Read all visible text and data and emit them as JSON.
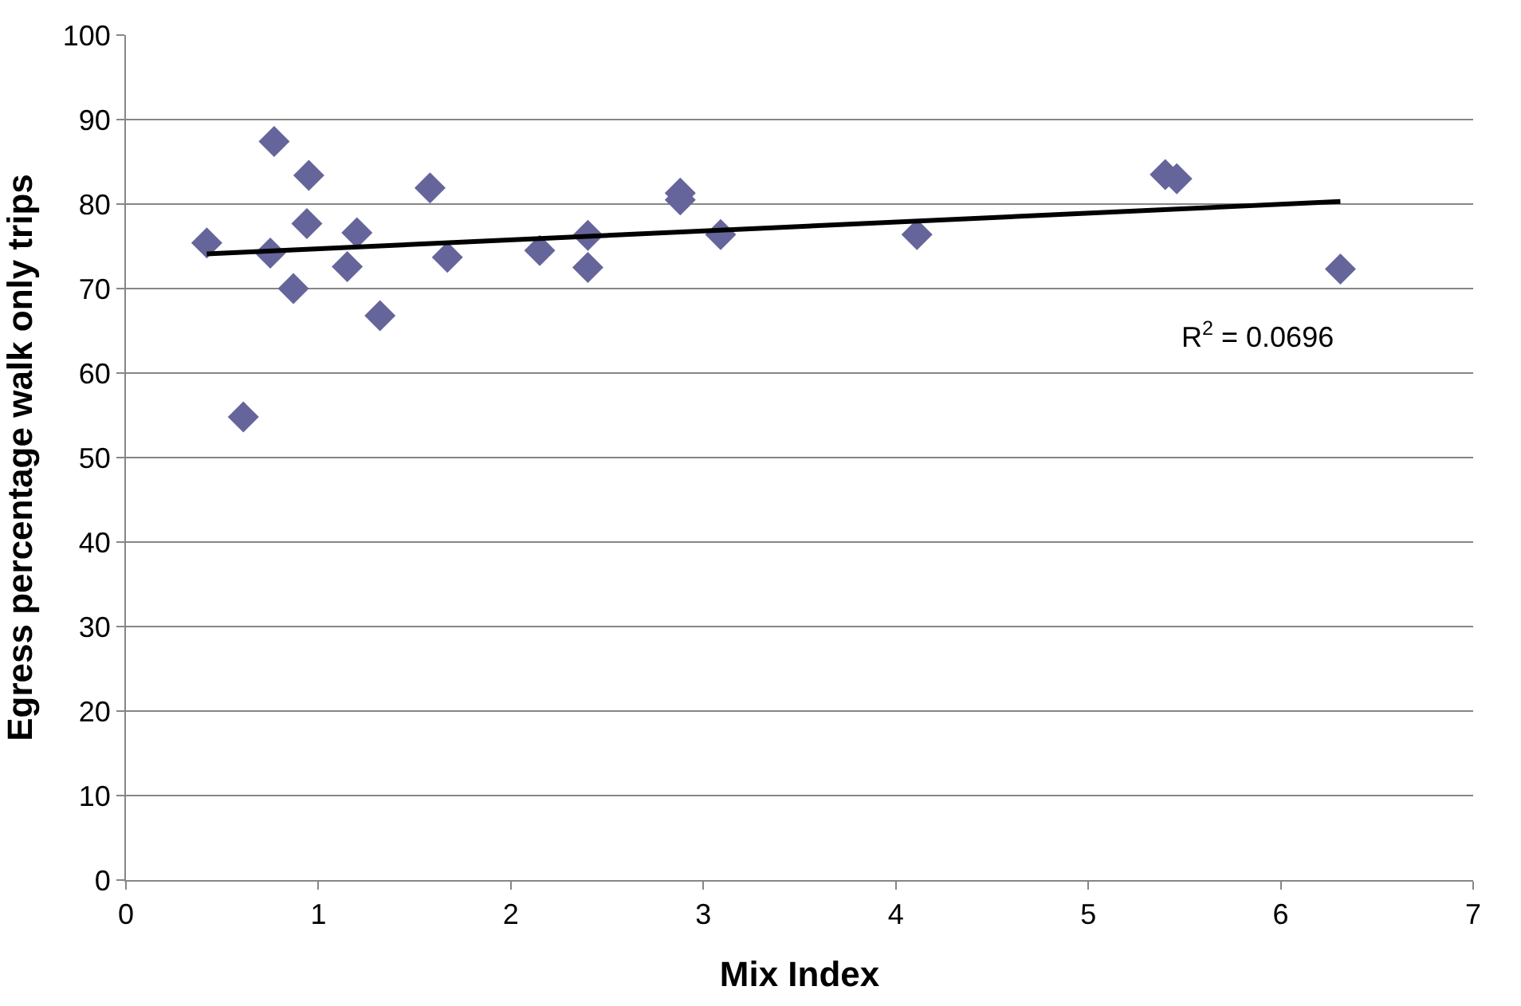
{
  "chart_data": {
    "type": "scatter",
    "xlabel": "Mix Index",
    "ylabel": "Egress percentage walk only trips",
    "xlim": [
      0,
      7
    ],
    "xticks": [
      0,
      1,
      2,
      3,
      4,
      5,
      6,
      7
    ],
    "ylim": [
      0,
      100
    ],
    "yticks": [
      0,
      10,
      20,
      30,
      40,
      50,
      60,
      70,
      80,
      90,
      100
    ],
    "grid": "y",
    "annotations": [
      "R$^{2}$ = 0.0696"
    ],
    "series": [
      {
        "marker": "diamond",
        "color": "#65659b",
        "x": [
          0.42,
          0.77,
          0.95,
          0.75,
          0.94,
          0.87,
          0.61,
          1.2,
          1.15,
          1.32,
          1.58,
          1.67,
          2.15,
          2.4,
          2.4,
          2.88,
          2.88,
          3.09,
          4.11,
          5.4,
          5.46,
          6.31
        ],
        "values": [
          75.4,
          87.4,
          83.4,
          74.2,
          77.7,
          70.0,
          54.8,
          76.6,
          72.6,
          66.8,
          81.9,
          73.7,
          74.5,
          76.3,
          72.5,
          81.3,
          80.5,
          76.4,
          76.4,
          83.5,
          83.0,
          72.3
        ]
      },
      {
        "type": "line",
        "marker": "none",
        "color": "#000000",
        "x": [
          0.42,
          6.31
        ],
        "values": [
          74.1,
          80.3
        ]
      }
    ]
  }
}
